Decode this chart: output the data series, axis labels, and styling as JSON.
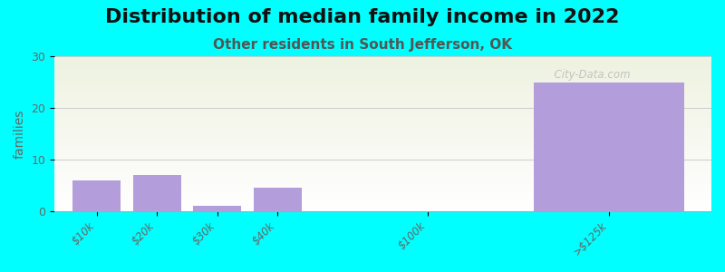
{
  "title": "Distribution of median family income in 2022",
  "subtitle": "Other residents in South Jefferson, OK",
  "ylabel": "families",
  "background_color": "#00FFFF",
  "plot_bg_gradient_top": "#eef2e0",
  "plot_bg_gradient_bottom": "#ffffff",
  "bar_color": "#b39ddb",
  "categories": [
    "$10k",
    "$20k",
    "$30k",
    "$40k",
    "$100k",
    ">$125k"
  ],
  "values": [
    6,
    7,
    1,
    4.5,
    0,
    25
  ],
  "positions": [
    0,
    1,
    2,
    3,
    5.5,
    8.5
  ],
  "bar_widths": [
    0.8,
    0.8,
    0.8,
    0.8,
    0.8,
    2.5
  ],
  "xlim": [
    -0.7,
    10.2
  ],
  "ylim": [
    0,
    30
  ],
  "yticks": [
    0,
    10,
    20,
    30
  ],
  "title_fontsize": 16,
  "subtitle_fontsize": 11,
  "ylabel_fontsize": 10,
  "watermark": "  City-Data.com"
}
